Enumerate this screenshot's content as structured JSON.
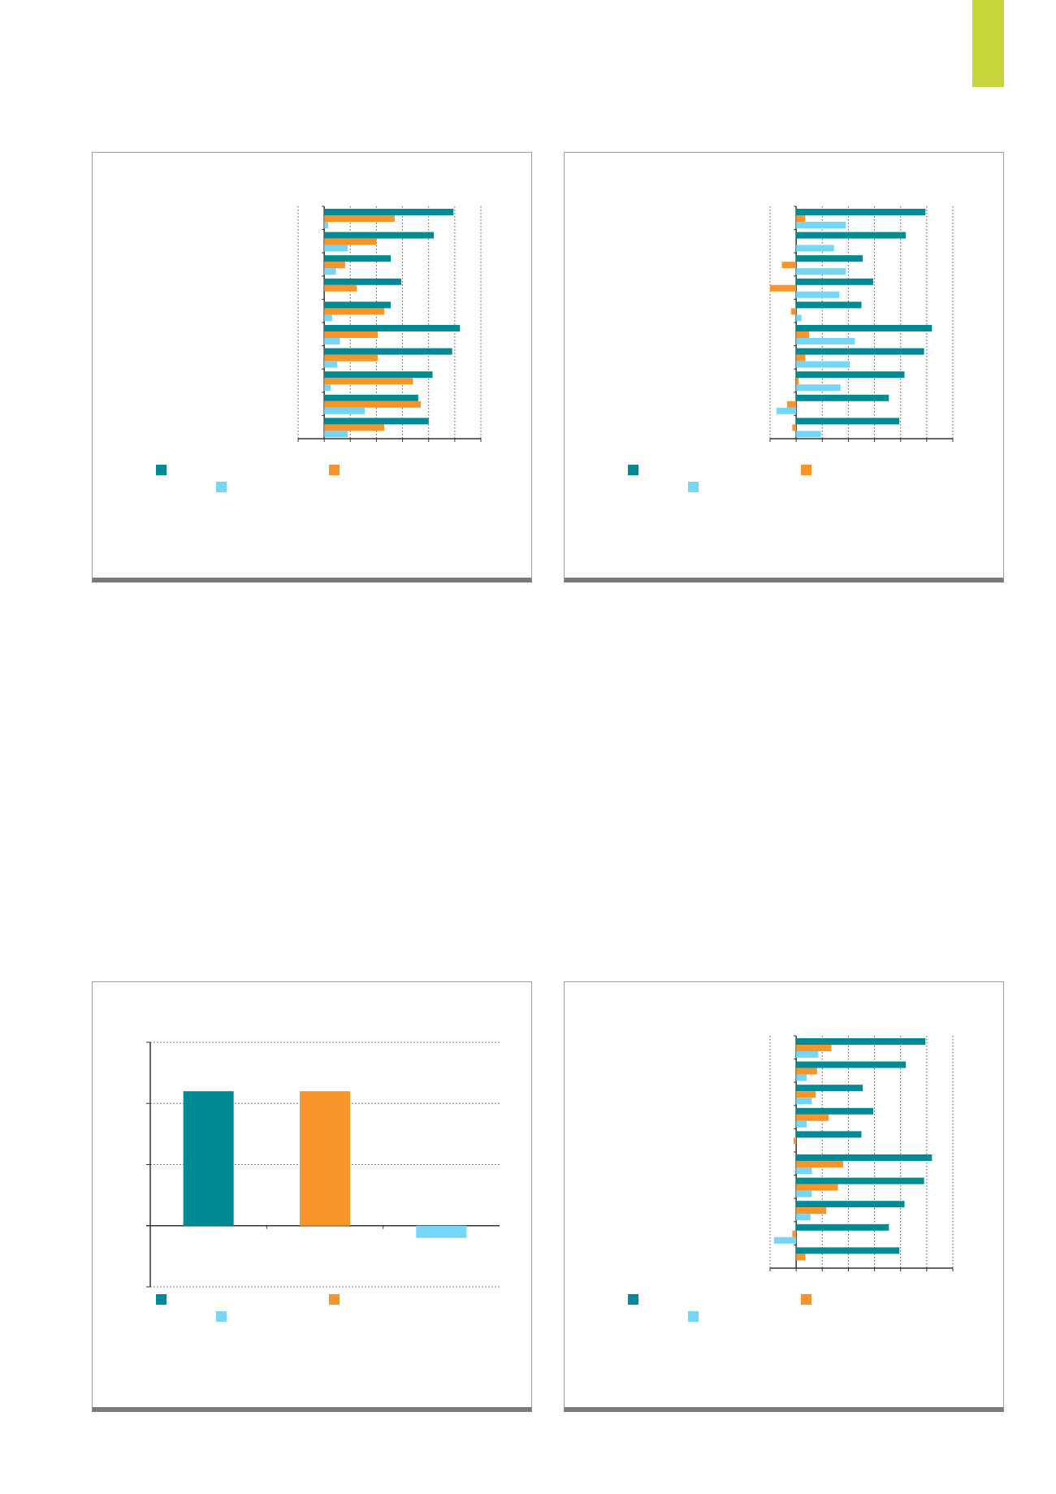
{
  "page": {
    "accent_color": "#c6d63a"
  },
  "colors": {
    "teal": "#008a94",
    "orange": "#f7952a",
    "lightblue": "#76d6f5"
  },
  "chart_data": [
    {
      "type": "bar",
      "orientation": "horizontal",
      "title": "",
      "xlabel": "",
      "ylabel": "",
      "categories": [
        "",
        "",
        "",
        "",
        "",
        "",
        "",
        "",
        "",
        ""
      ],
      "xlim": [
        -1,
        6
      ],
      "grid": true,
      "legend": "bottom",
      "series": [
        {
          "color": "#008a94",
          "values": [
            4.95,
            4.2,
            2.55,
            2.95,
            2.55,
            5.2,
            4.9,
            4.15,
            3.6,
            4.0
          ]
        },
        {
          "color": "#f7952a",
          "values": [
            2.7,
            2.0,
            0.8,
            1.25,
            2.3,
            2.05,
            2.05,
            3.4,
            3.7,
            2.3
          ]
        },
        {
          "color": "#76d6f5",
          "values": [
            0.15,
            0.9,
            0.45,
            0.0,
            0.3,
            0.6,
            0.5,
            0.25,
            1.55,
            0.9
          ]
        }
      ]
    },
    {
      "type": "bar",
      "orientation": "horizontal",
      "title": "",
      "xlabel": "",
      "ylabel": "",
      "categories": [
        "",
        "",
        "",
        "",
        "",
        "",
        "",
        "",
        "",
        ""
      ],
      "xlim": [
        -1,
        6
      ],
      "grid": true,
      "legend": "bottom",
      "series": [
        {
          "color": "#008a94",
          "values": [
            4.95,
            4.2,
            2.55,
            2.95,
            2.5,
            5.2,
            4.9,
            4.15,
            3.55,
            3.95
          ]
        },
        {
          "color": "#f7952a",
          "values": [
            0.35,
            0.0,
            -0.55,
            -1.0,
            -0.2,
            0.5,
            0.35,
            0.1,
            -0.35,
            -0.15
          ]
        },
        {
          "color": "#76d6f5",
          "values": [
            1.9,
            1.45,
            1.9,
            1.65,
            0.2,
            2.25,
            2.05,
            1.7,
            -0.75,
            0.95
          ]
        }
      ]
    },
    {
      "type": "bar",
      "orientation": "vertical",
      "title": "",
      "xlabel": "",
      "ylabel": "",
      "categories": [
        "",
        "",
        ""
      ],
      "ylim": [
        -1,
        3
      ],
      "grid": true,
      "legend": "bottom",
      "series": [
        {
          "color": "#008a94",
          "values": [
            2.2,
            null,
            null
          ]
        },
        {
          "color": "#f7952a",
          "values": [
            null,
            2.2,
            null
          ]
        },
        {
          "color": "#76d6f5",
          "values": [
            null,
            null,
            -0.2
          ]
        }
      ]
    },
    {
      "type": "bar",
      "orientation": "horizontal",
      "title": "",
      "xlabel": "",
      "ylabel": "",
      "categories": [
        "",
        "",
        "",
        "",
        "",
        "",
        "",
        "",
        "",
        ""
      ],
      "xlim": [
        -1,
        6
      ],
      "grid": true,
      "legend": "bottom",
      "series": [
        {
          "color": "#008a94",
          "values": [
            4.95,
            4.2,
            2.55,
            2.95,
            2.5,
            5.2,
            4.9,
            4.15,
            3.55,
            3.95
          ]
        },
        {
          "color": "#f7952a",
          "values": [
            1.35,
            0.8,
            0.75,
            1.25,
            -0.1,
            1.8,
            1.6,
            1.15,
            -0.15,
            0.35
          ]
        },
        {
          "color": "#76d6f5",
          "values": [
            0.85,
            0.4,
            0.6,
            0.4,
            0.0,
            0.6,
            0.6,
            0.55,
            -0.85,
            0.0
          ]
        }
      ]
    }
  ]
}
